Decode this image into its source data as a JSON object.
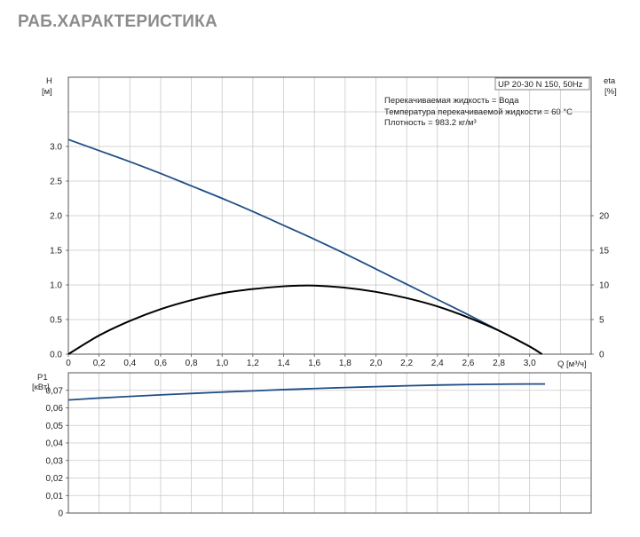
{
  "page": {
    "title": "РАБ.ХАРАКТЕРИСТИКА"
  },
  "chart_data": [
    {
      "type": "line",
      "name": "head-efficiency",
      "model": "UP 20-30 N 150, 50Hz",
      "info": [
        "Перекачиваемая жидкость = Вода",
        "Температура перекачиваемой жидкости = 60 °C",
        "Плотность = 983.2 кг/м³"
      ],
      "y_left_label": [
        "H",
        "[м]"
      ],
      "y_right_label": [
        "eta",
        "[%]"
      ],
      "x_label": "Q [м³/ч]",
      "xlim": [
        0,
        3.4
      ],
      "ylim": [
        0,
        4.0
      ],
      "y2lim": [
        0,
        40
      ],
      "x_ticks": [
        "0",
        "0,2",
        "0,4",
        "0,6",
        "0,8",
        "1,0",
        "1,2",
        "1,4",
        "1,6",
        "1,8",
        "2,0",
        "2,2",
        "2,4",
        "2,6",
        "2,8",
        "3,0"
      ],
      "y_ticks": [
        "0.0",
        "0.5",
        "1.0",
        "1.5",
        "2.0",
        "2.5",
        "3.0"
      ],
      "y2_ticks": [
        "0",
        "5",
        "10",
        "15",
        "20"
      ],
      "grid": true,
      "series": [
        {
          "key": "head",
          "axis": "left",
          "color": "#1f4e86",
          "x": [
            0,
            0.2,
            0.4,
            0.6,
            0.8,
            1.0,
            1.2,
            1.4,
            1.6,
            1.8,
            2.0,
            2.2,
            2.4,
            2.6,
            2.8,
            3.0,
            3.08
          ],
          "y": [
            3.1,
            2.94,
            2.78,
            2.61,
            2.43,
            2.25,
            2.06,
            1.86,
            1.66,
            1.45,
            1.23,
            1.01,
            0.79,
            0.57,
            0.34,
            0.11,
            0.0
          ]
        },
        {
          "key": "eta",
          "axis": "right",
          "color": "#000000",
          "x": [
            0,
            0.2,
            0.4,
            0.6,
            0.8,
            1.0,
            1.2,
            1.4,
            1.5,
            1.6,
            1.8,
            2.0,
            2.2,
            2.4,
            2.6,
            2.8,
            3.0,
            3.08
          ],
          "y": [
            0,
            2.7,
            4.8,
            6.5,
            7.8,
            8.8,
            9.4,
            9.8,
            9.9,
            9.9,
            9.6,
            9.0,
            8.1,
            6.9,
            5.3,
            3.4,
            1.1,
            0
          ]
        }
      ]
    },
    {
      "type": "line",
      "name": "power",
      "y_label": [
        "P1",
        "[кВт]"
      ],
      "xlim": [
        0,
        3.4
      ],
      "ylim": [
        0,
        0.08
      ],
      "y_ticks": [
        "0",
        "0,01",
        "0,02",
        "0,03",
        "0,04",
        "0,05",
        "0,06",
        "0,07"
      ],
      "grid": true,
      "series": [
        {
          "key": "p1",
          "color": "#1f4e86",
          "x": [
            0,
            0.2,
            0.4,
            0.6,
            0.8,
            1.0,
            1.2,
            1.4,
            1.6,
            1.8,
            2.0,
            2.2,
            2.4,
            2.6,
            2.8,
            3.0,
            3.1
          ],
          "y": [
            0.0645,
            0.0656,
            0.0665,
            0.0674,
            0.0682,
            0.069,
            0.0697,
            0.0704,
            0.071,
            0.0716,
            0.0721,
            0.0726,
            0.073,
            0.0733,
            0.0735,
            0.0736,
            0.0736
          ]
        }
      ]
    }
  ]
}
